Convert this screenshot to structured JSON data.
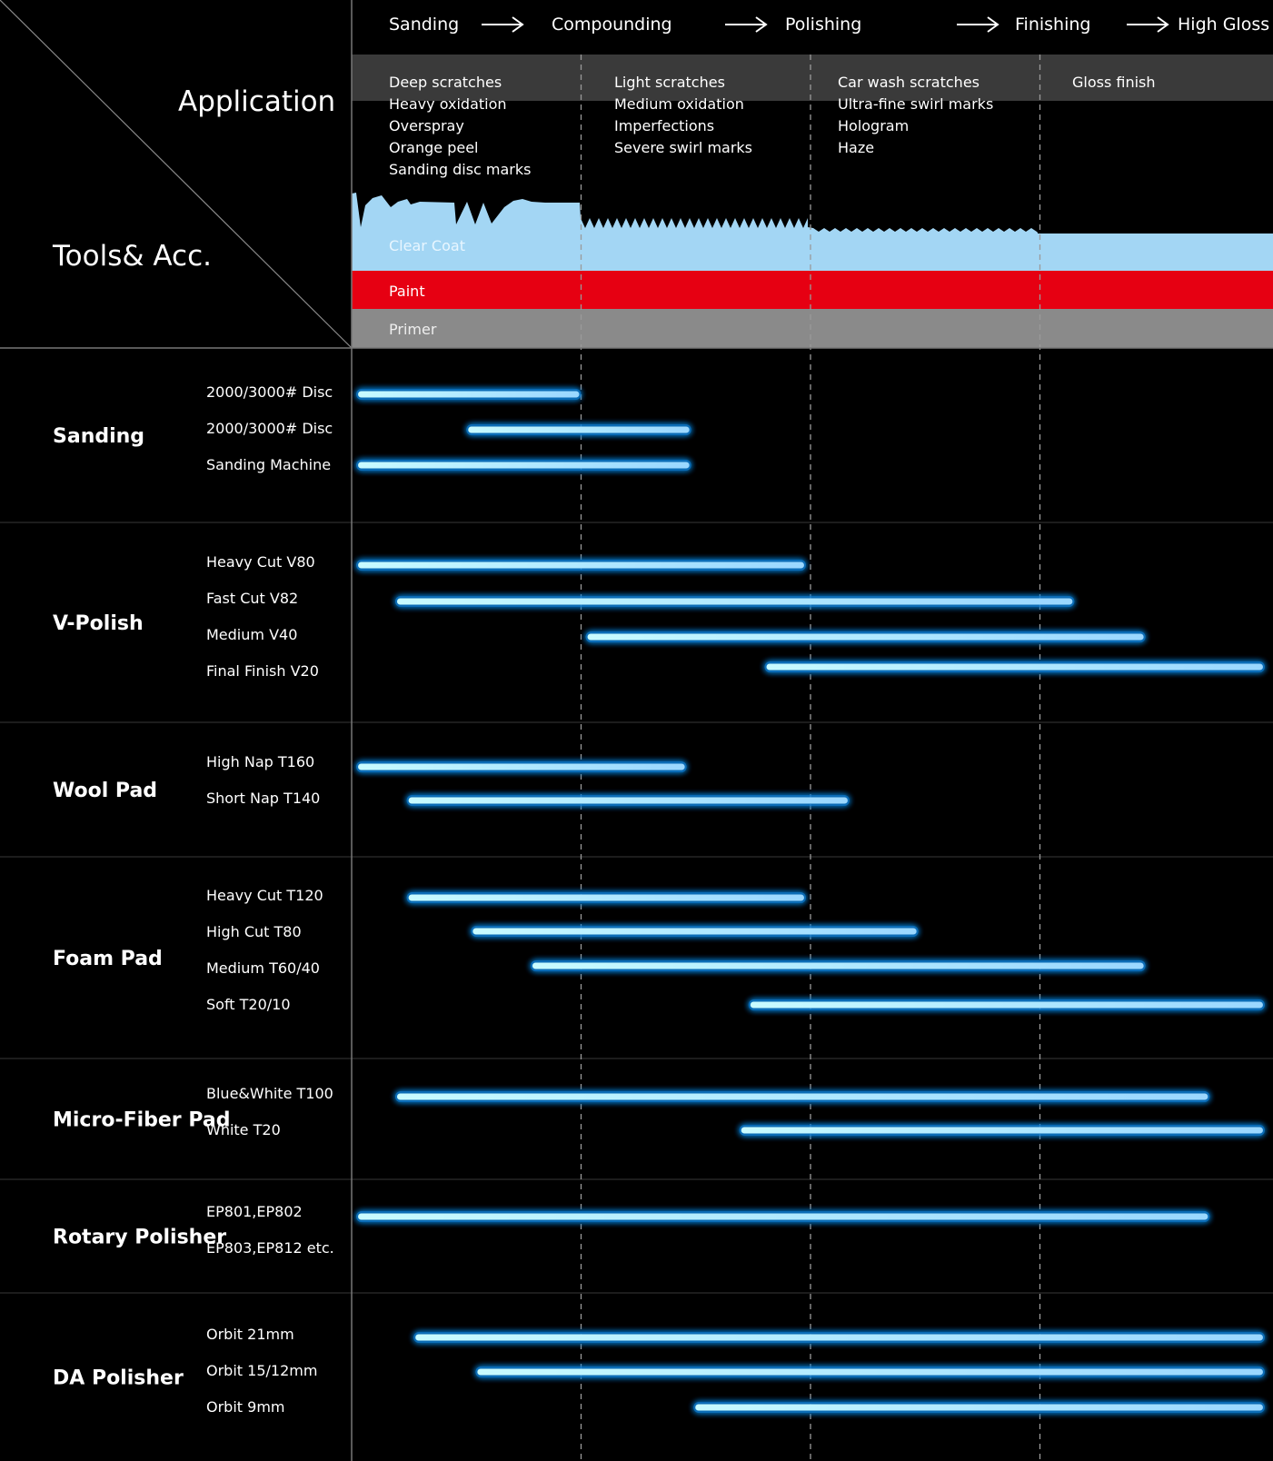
{
  "header": {
    "application_label": "Application",
    "tools_label": "Tools& Acc."
  },
  "colors": {
    "background": "#000000",
    "band": "#3a3a3a",
    "clear_coat": "#a3d6f4",
    "paint": "#e60012",
    "primer": "#8a8a8a",
    "bar_core": "#d9fbff",
    "bar_glow": "#1ea7ff",
    "grid": "#5a5a5a"
  },
  "stages": [
    "Sanding",
    "Compounding",
    "Polishing",
    "Finishing",
    "High Gloss"
  ],
  "issues": [
    [
      "Deep scratches",
      "Heavy oxidation",
      "Overspray",
      "Orange peel",
      "Sanding disc marks"
    ],
    [
      "Light scratches",
      "Medium oxidation",
      "Imperfections",
      "Severe swirl marks"
    ],
    [
      "Car wash scratches",
      "Ultra-fine swirl marks",
      "Hologram",
      "Haze"
    ],
    [
      "Gloss finish"
    ]
  ],
  "layers": {
    "clear_coat": "Clear Coat",
    "paint": "Paint",
    "primer": "Primer"
  },
  "chart_data": {
    "type": "gantt",
    "x_categories": [
      "Sanding",
      "Compounding",
      "Polishing",
      "Finishing",
      "High Gloss"
    ],
    "x_range": [
      0,
      4
    ],
    "groups": [
      {
        "name": "Sanding",
        "items": [
          {
            "label": "2000/3000# Disc",
            "start": 0.02,
            "end": 1.0
          },
          {
            "label": "2000/3000# Disc",
            "start": 0.5,
            "end": 1.48
          },
          {
            "label": "Sanding Machine",
            "start": 0.02,
            "end": 1.48
          }
        ]
      },
      {
        "name": "V-Polish",
        "items": [
          {
            "label": "Heavy Cut V80",
            "start": 0.02,
            "end": 1.98
          },
          {
            "label": "Fast Cut V82",
            "start": 0.19,
            "end": 3.15
          },
          {
            "label": "Medium V40",
            "start": 1.02,
            "end": 3.46
          },
          {
            "label": "Final Finish V20",
            "start": 1.8,
            "end": 3.98
          }
        ]
      },
      {
        "name": "Wool Pad",
        "items": [
          {
            "label": "High Nap T160",
            "start": 0.02,
            "end": 1.46
          },
          {
            "label": "Short Nap T140",
            "start": 0.24,
            "end": 2.17
          }
        ]
      },
      {
        "name": "Foam Pad",
        "items": [
          {
            "label": "Heavy Cut T120",
            "start": 0.24,
            "end": 1.98
          },
          {
            "label": "High Cut T80",
            "start": 0.52,
            "end": 2.47
          },
          {
            "label": "Medium T60/40",
            "start": 0.78,
            "end": 3.46
          },
          {
            "label": "Soft T20/10",
            "start": 1.73,
            "end": 3.98
          }
        ]
      },
      {
        "name": "Micro-Fiber Pad",
        "items": [
          {
            "label": "Blue&White T100",
            "start": 0.19,
            "end": 3.74
          },
          {
            "label": "White T20",
            "start": 1.69,
            "end": 3.98
          }
        ]
      },
      {
        "name": "Rotary Polisher",
        "items": [
          {
            "label": "EP801,EP802",
            "start": 0.02,
            "end": 3.74
          },
          {
            "label": "EP803,EP812 etc.",
            "start": null,
            "end": null
          }
        ]
      },
      {
        "name": "DA Polisher",
        "items": [
          {
            "label": "Orbit 21mm",
            "start": 0.27,
            "end": 3.98
          },
          {
            "label": "Orbit 15/12mm",
            "start": 0.54,
            "end": 3.98
          },
          {
            "label": "Orbit 9mm",
            "start": 1.49,
            "end": 3.98
          }
        ]
      }
    ]
  }
}
